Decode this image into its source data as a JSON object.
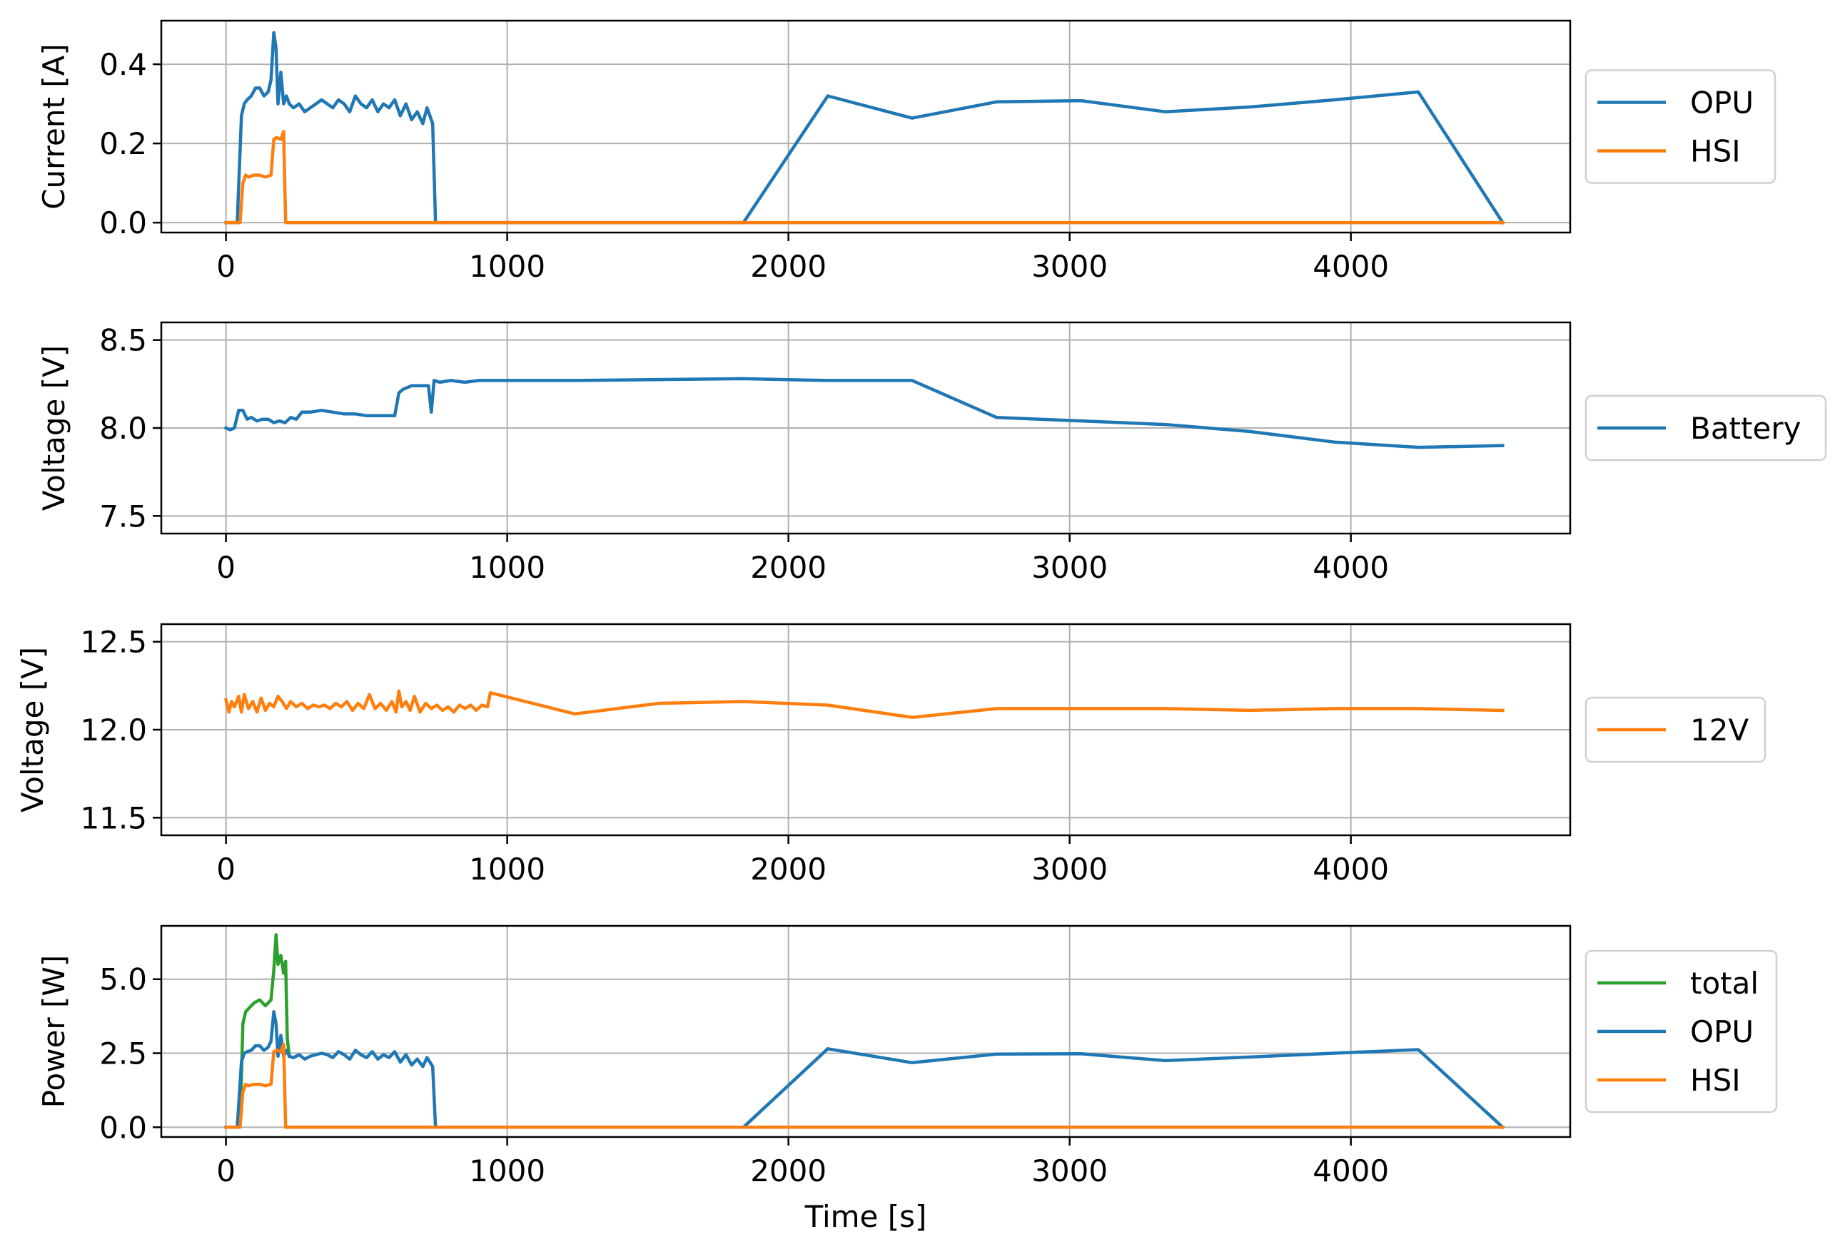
{
  "colors": {
    "opu": "#1f77b4",
    "hsi": "#ff7f0e",
    "total": "#2ca02c",
    "grid": "#b0b0b0",
    "axis": "#000000"
  },
  "chart_data": [
    {
      "type": "line",
      "ylabel": "Current [A]",
      "xlabel": "",
      "xlim": [
        -230,
        4780
      ],
      "ylim": [
        -0.025,
        0.51
      ],
      "xticks": [
        0,
        1000,
        2000,
        3000,
        4000
      ],
      "xtick_labels": [
        "0",
        "1000",
        "2000",
        "3000",
        "4000"
      ],
      "yticks": [
        0.0,
        0.2,
        0.4
      ],
      "ytick_labels": [
        "0.0",
        "0.2",
        "0.4"
      ],
      "grid": true,
      "legend_placement": "outside right",
      "series": [
        {
          "name": "OPU",
          "color_key": "opu",
          "x": [
            0,
            40,
            55,
            65,
            75,
            90,
            105,
            120,
            135,
            150,
            160,
            170,
            178,
            185,
            195,
            205,
            215,
            225,
            240,
            260,
            280,
            300,
            320,
            340,
            360,
            380,
            400,
            420,
            440,
            460,
            480,
            500,
            520,
            540,
            560,
            580,
            600,
            620,
            640,
            660,
            680,
            700,
            715,
            725,
            735,
            745,
            800,
            1000,
            1500,
            1840,
            2140,
            2440,
            2740,
            3040,
            3340,
            3640,
            3940,
            4240,
            4540
          ],
          "y": [
            0.0,
            0.0,
            0.27,
            0.3,
            0.31,
            0.32,
            0.34,
            0.34,
            0.32,
            0.33,
            0.36,
            0.48,
            0.44,
            0.3,
            0.38,
            0.3,
            0.32,
            0.3,
            0.29,
            0.3,
            0.28,
            0.29,
            0.3,
            0.31,
            0.3,
            0.29,
            0.31,
            0.3,
            0.28,
            0.32,
            0.3,
            0.29,
            0.31,
            0.28,
            0.3,
            0.29,
            0.31,
            0.27,
            0.3,
            0.26,
            0.28,
            0.25,
            0.29,
            0.27,
            0.25,
            0.0,
            0.0,
            0.0,
            0.0,
            0.0,
            0.32,
            0.264,
            0.305,
            0.308,
            0.28,
            0.292,
            0.31,
            0.33,
            0.0
          ]
        },
        {
          "name": "HSI",
          "color_key": "hsi",
          "x": [
            0,
            50,
            60,
            70,
            80,
            100,
            120,
            140,
            160,
            170,
            180,
            195,
            205,
            212,
            218,
            225,
            300,
            1000,
            2000,
            3000,
            4000,
            4540
          ],
          "y": [
            0.0,
            0.0,
            0.1,
            0.12,
            0.115,
            0.12,
            0.12,
            0.115,
            0.12,
            0.21,
            0.215,
            0.21,
            0.23,
            0.0,
            0.0,
            0.0,
            0.0,
            0.0,
            0.0,
            0.0,
            0.0,
            0.0
          ]
        }
      ]
    },
    {
      "type": "line",
      "ylabel": "Voltage [V]",
      "xlabel": "",
      "xlim": [
        -230,
        4780
      ],
      "ylim": [
        7.4,
        8.6
      ],
      "xticks": [
        0,
        1000,
        2000,
        3000,
        4000
      ],
      "xtick_labels": [
        "0",
        "1000",
        "2000",
        "3000",
        "4000"
      ],
      "yticks": [
        7.5,
        8.0,
        8.5
      ],
      "ytick_labels": [
        "7.5",
        "8.0",
        "8.5"
      ],
      "grid": true,
      "legend_placement": "outside right",
      "series": [
        {
          "name": "Battery",
          "color_key": "opu",
          "x": [
            0,
            15,
            30,
            45,
            60,
            75,
            90,
            110,
            130,
            150,
            170,
            190,
            210,
            230,
            250,
            270,
            300,
            340,
            380,
            420,
            460,
            500,
            540,
            580,
            600,
            615,
            630,
            660,
            700,
            720,
            730,
            740,
            760,
            800,
            850,
            900,
            940,
            1240,
            1840,
            2140,
            2440,
            2740,
            3040,
            3340,
            3640,
            3940,
            4240,
            4540
          ],
          "y": [
            8.0,
            7.99,
            8.0,
            8.1,
            8.1,
            8.05,
            8.06,
            8.04,
            8.05,
            8.05,
            8.03,
            8.04,
            8.03,
            8.06,
            8.05,
            8.09,
            8.09,
            8.1,
            8.09,
            8.08,
            8.08,
            8.07,
            8.07,
            8.07,
            8.07,
            8.2,
            8.22,
            8.24,
            8.24,
            8.24,
            8.09,
            8.27,
            8.26,
            8.27,
            8.26,
            8.27,
            8.27,
            8.27,
            8.28,
            8.27,
            8.27,
            8.06,
            8.04,
            8.02,
            7.98,
            7.92,
            7.89,
            7.9
          ]
        }
      ]
    },
    {
      "type": "line",
      "ylabel": "Voltage [V]",
      "xlabel": "",
      "xlim": [
        -230,
        4780
      ],
      "ylim": [
        11.4,
        12.6
      ],
      "xticks": [
        0,
        1000,
        2000,
        3000,
        4000
      ],
      "xtick_labels": [
        "0",
        "1000",
        "2000",
        "3000",
        "4000"
      ],
      "yticks": [
        11.5,
        12.0,
        12.5
      ],
      "ytick_labels": [
        "11.5",
        "12.0",
        "12.5"
      ],
      "grid": true,
      "legend_placement": "outside right",
      "series": [
        {
          "name": "12V",
          "color_key": "hsi",
          "x": [
            0,
            10,
            20,
            30,
            45,
            55,
            65,
            80,
            95,
            110,
            125,
            140,
            155,
            170,
            185,
            200,
            215,
            230,
            250,
            270,
            290,
            310,
            330,
            350,
            370,
            390,
            410,
            430,
            450,
            470,
            490,
            510,
            530,
            550,
            570,
            590,
            605,
            615,
            625,
            640,
            655,
            670,
            690,
            710,
            730,
            750,
            770,
            790,
            810,
            830,
            850,
            870,
            890,
            910,
            930,
            940,
            1240,
            1540,
            1840,
            2140,
            2440,
            2740,
            3040,
            3340,
            3640,
            3940,
            4240,
            4540
          ],
          "y": [
            12.17,
            12.1,
            12.16,
            12.13,
            12.19,
            12.1,
            12.2,
            12.12,
            12.16,
            12.1,
            12.18,
            12.11,
            12.15,
            12.13,
            12.19,
            12.16,
            12.12,
            12.16,
            12.13,
            12.15,
            12.12,
            12.14,
            12.13,
            12.14,
            12.12,
            12.15,
            12.13,
            12.16,
            12.11,
            12.15,
            12.12,
            12.2,
            12.12,
            12.15,
            12.11,
            12.16,
            12.1,
            12.22,
            12.13,
            12.16,
            12.11,
            12.19,
            12.1,
            12.15,
            12.12,
            12.14,
            12.11,
            12.13,
            12.1,
            12.14,
            12.12,
            12.14,
            12.11,
            12.14,
            12.13,
            12.21,
            12.09,
            12.15,
            12.16,
            12.14,
            12.07,
            12.12,
            12.12,
            12.12,
            12.11,
            12.12,
            12.12,
            12.11
          ]
        }
      ]
    },
    {
      "type": "line",
      "ylabel": "Power [W]",
      "xlabel": "Time [s]",
      "xlim": [
        -230,
        4780
      ],
      "ylim": [
        -0.33,
        6.8
      ],
      "xticks": [
        0,
        1000,
        2000,
        3000,
        4000
      ],
      "xtick_labels": [
        "0",
        "1000",
        "2000",
        "3000",
        "4000"
      ],
      "yticks": [
        0.0,
        2.5,
        5.0
      ],
      "ytick_labels": [
        "0.0",
        "2.5",
        "5.0"
      ],
      "grid": true,
      "legend_placement": "outside right",
      "series": [
        {
          "name": "total",
          "color_key": "total",
          "x": [
            0,
            50,
            60,
            70,
            80,
            100,
            120,
            140,
            160,
            170,
            178,
            185,
            195,
            205,
            212,
            218,
            225
          ],
          "y": [
            0.0,
            0.0,
            3.5,
            3.9,
            4.0,
            4.2,
            4.3,
            4.1,
            4.3,
            5.3,
            6.5,
            5.5,
            5.8,
            5.2,
            5.6,
            3.0,
            2.4
          ]
        },
        {
          "name": "OPU",
          "color_key": "opu",
          "x": [
            0,
            40,
            55,
            65,
            75,
            90,
            105,
            120,
            135,
            150,
            160,
            170,
            178,
            185,
            195,
            205,
            215,
            225,
            240,
            260,
            280,
            300,
            320,
            340,
            360,
            380,
            400,
            420,
            440,
            460,
            480,
            500,
            520,
            540,
            560,
            580,
            600,
            620,
            640,
            660,
            680,
            700,
            715,
            725,
            735,
            745,
            800,
            1000,
            1500,
            1840,
            2140,
            2440,
            2740,
            3040,
            3340,
            3640,
            3940,
            4240,
            4540
          ],
          "y": [
            0.0,
            0.0,
            2.2,
            2.5,
            2.55,
            2.6,
            2.75,
            2.75,
            2.6,
            2.7,
            2.9,
            3.9,
            3.5,
            2.4,
            3.1,
            2.4,
            2.6,
            2.4,
            2.35,
            2.45,
            2.3,
            2.4,
            2.45,
            2.5,
            2.45,
            2.35,
            2.55,
            2.45,
            2.3,
            2.6,
            2.45,
            2.35,
            2.55,
            2.3,
            2.45,
            2.35,
            2.55,
            2.2,
            2.45,
            2.1,
            2.3,
            2.05,
            2.35,
            2.2,
            2.05,
            0.0,
            0.0,
            0.0,
            0.0,
            0.0,
            2.65,
            2.18,
            2.47,
            2.48,
            2.25,
            2.37,
            2.5,
            2.62,
            0.0
          ]
        },
        {
          "name": "HSI",
          "color_key": "hsi",
          "x": [
            0,
            50,
            60,
            70,
            80,
            100,
            120,
            140,
            160,
            170,
            180,
            195,
            205,
            212,
            218,
            225,
            300,
            1000,
            2000,
            3000,
            4000,
            4540
          ],
          "y": [
            0.0,
            0.0,
            1.2,
            1.45,
            1.4,
            1.45,
            1.45,
            1.4,
            1.45,
            2.55,
            2.6,
            2.55,
            2.8,
            0.0,
            0.0,
            0.0,
            0.0,
            0.0,
            0.0,
            0.0,
            0.0,
            0.0
          ]
        }
      ]
    }
  ]
}
